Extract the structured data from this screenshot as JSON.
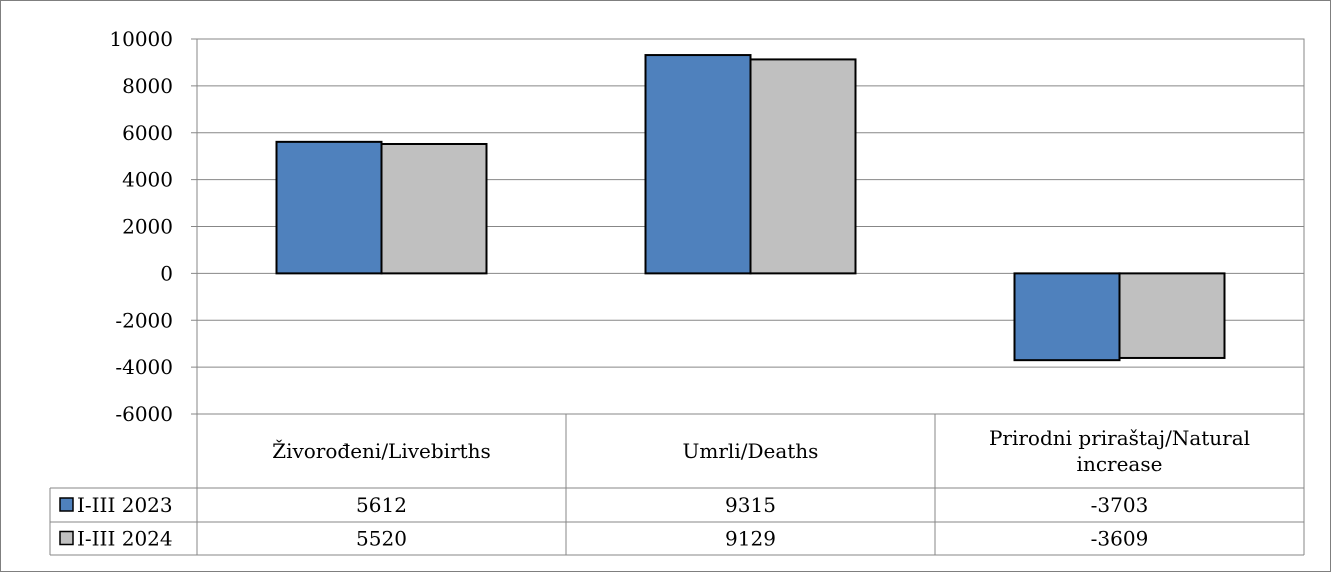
{
  "chart_data": {
    "type": "bar",
    "categories": [
      "Živorođeni/Livebirths",
      "Umrli/Deaths",
      "Prirodni priraštaj/Natural increase"
    ],
    "category_lines": [
      [
        "Živorođeni/Livebirths"
      ],
      [
        "Umrli/Deaths"
      ],
      [
        "Prirodni priraštaj/Natural",
        "increase"
      ]
    ],
    "series": [
      {
        "name": "I-III 2023",
        "values": [
          5612,
          9315,
          -3703
        ],
        "color": "#4f81bd",
        "value_labels": [
          "5612",
          "9315",
          "-3703"
        ]
      },
      {
        "name": "I-III 2024",
        "values": [
          5520,
          9129,
          -3609
        ],
        "color": "#c0c0c0",
        "value_labels": [
          "5520",
          "9129",
          "-3609"
        ]
      }
    ],
    "ylim": [
      -6000,
      10000
    ],
    "yticks": [
      10000,
      8000,
      6000,
      4000,
      2000,
      0,
      -2000,
      -4000,
      -6000
    ],
    "ytick_labels": [
      "10000",
      "8000",
      "6000",
      "4000",
      "2000",
      "0",
      "-2000",
      "-4000",
      "-6000"
    ],
    "grid": true,
    "legend": "data-table",
    "data_table": true
  }
}
